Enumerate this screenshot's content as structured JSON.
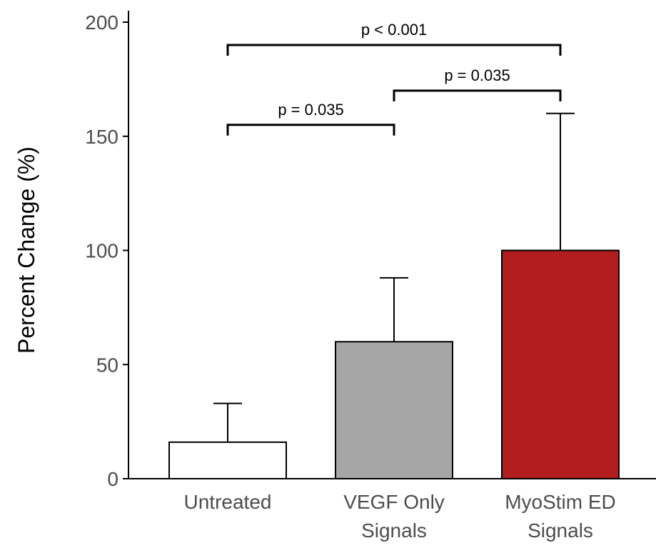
{
  "chart_data": {
    "type": "bar",
    "ylabel": "Percent Change (%)",
    "ylim": [
      0,
      200
    ],
    "yticks": [
      0,
      50,
      100,
      150,
      200
    ],
    "categories": [
      [
        "Untreated"
      ],
      [
        "VEGF Only",
        "Signals"
      ],
      [
        "MyoStim ED",
        "Signals"
      ]
    ],
    "values": [
      16,
      60,
      100
    ],
    "error_upper": [
      33,
      88,
      160
    ],
    "bar_colors": [
      "#ffffff",
      "#a6a6a6",
      "#b21e1e"
    ],
    "grid": false,
    "comparisons": [
      {
        "from": 0,
        "to": 1,
        "label": "p = 0.035",
        "y": 155
      },
      {
        "from": 1,
        "to": 2,
        "label": "p = 0.035",
        "y": 170
      },
      {
        "from": 0,
        "to": 2,
        "label": "p < 0.001",
        "y": 190
      }
    ]
  }
}
